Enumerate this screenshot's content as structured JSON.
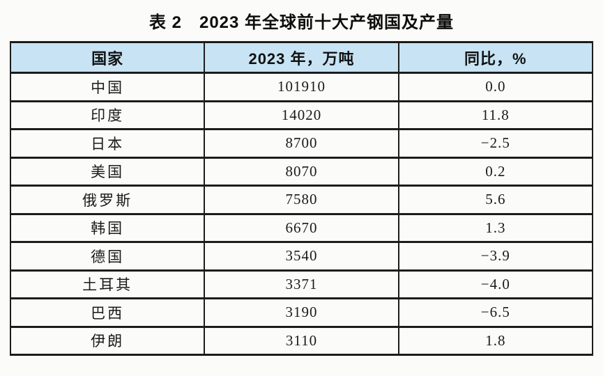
{
  "title": "表 2　2023 年全球前十大产钢国及产量",
  "colors": {
    "header_bg": "#c8e4f4",
    "border": "#1c1c1c",
    "page_bg": "#fbfbfa"
  },
  "table": {
    "headers": [
      "国家",
      "2023 年，万吨",
      "同比，%"
    ],
    "rows": [
      {
        "country": "中国",
        "production_2023": "101910",
        "yoy_pct": "0.0"
      },
      {
        "country": "印度",
        "production_2023": "14020",
        "yoy_pct": "11.8"
      },
      {
        "country": "日本",
        "production_2023": "8700",
        "yoy_pct": "−2.5"
      },
      {
        "country": "美国",
        "production_2023": "8070",
        "yoy_pct": "0.2"
      },
      {
        "country": "俄罗斯",
        "production_2023": "7580",
        "yoy_pct": "5.6"
      },
      {
        "country": "韩国",
        "production_2023": "6670",
        "yoy_pct": "1.3"
      },
      {
        "country": "德国",
        "production_2023": "3540",
        "yoy_pct": "−3.9"
      },
      {
        "country": "土耳其",
        "production_2023": "3371",
        "yoy_pct": "−4.0"
      },
      {
        "country": "巴西",
        "production_2023": "3190",
        "yoy_pct": "−6.5"
      },
      {
        "country": "伊朗",
        "production_2023": "3110",
        "yoy_pct": "1.8"
      }
    ]
  }
}
